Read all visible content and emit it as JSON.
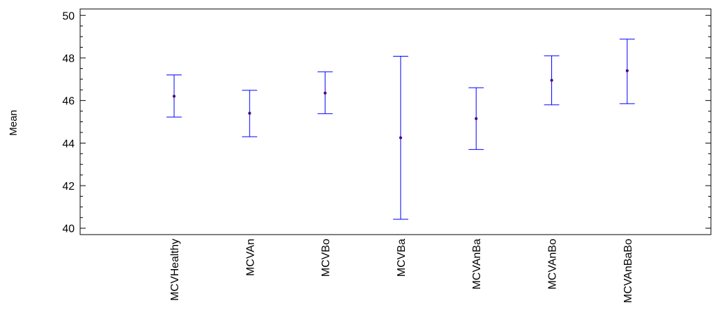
{
  "chart_data": {
    "type": "errorbar",
    "title": "",
    "xlabel": "",
    "ylabel": "Mean",
    "ylim": [
      39.7,
      50.3
    ],
    "yticks": [
      40,
      42,
      44,
      46,
      48,
      50
    ],
    "grid": false,
    "categories": [
      "MCVHealthy",
      "MCVAn",
      "MCVBo",
      "MCVBa",
      "MCVAnBa",
      "MCVAnBo",
      "MCVAnBaBo"
    ],
    "series": [
      {
        "mean": [
          46.2,
          45.4,
          46.35,
          44.25,
          45.15,
          46.95,
          47.4
        ],
        "lower": [
          45.22,
          44.3,
          45.38,
          40.42,
          43.7,
          45.8,
          45.85
        ],
        "upper": [
          47.2,
          46.48,
          47.35,
          48.08,
          46.6,
          48.1,
          48.88
        ]
      }
    ],
    "colors": {
      "bar": "#0000ff",
      "point": "#800000",
      "axis": "#000000"
    }
  }
}
